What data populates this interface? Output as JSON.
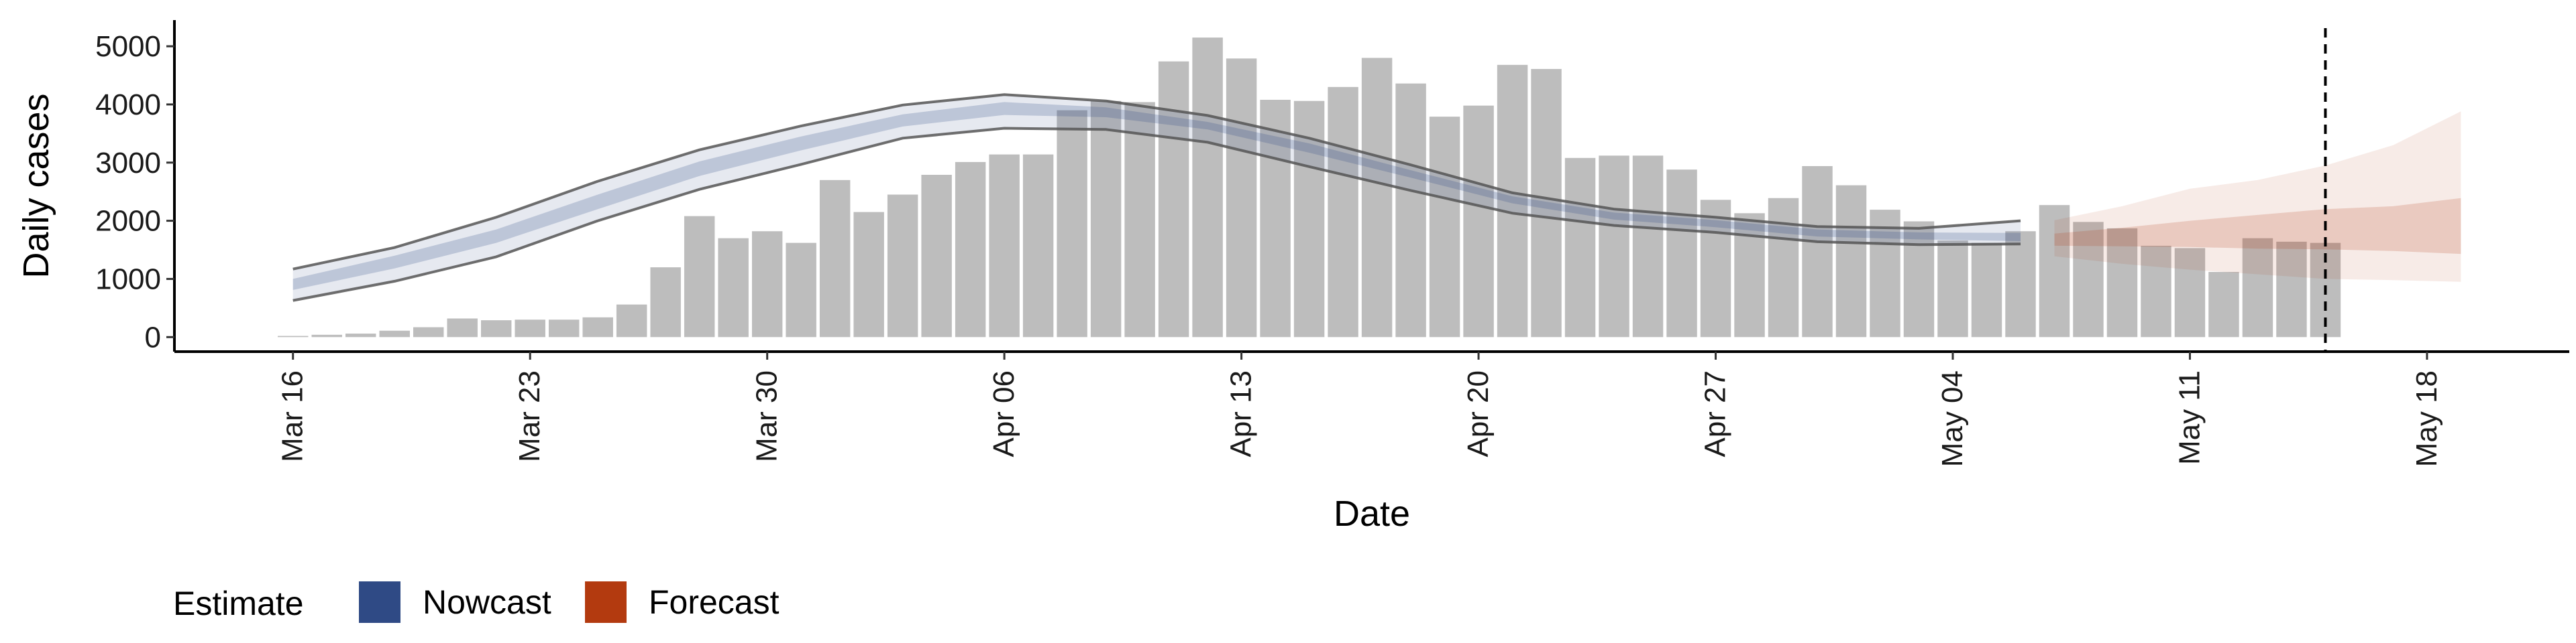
{
  "chart_data": {
    "type": "bar",
    "xlabel": "Date",
    "ylabel": "Daily cases",
    "ylim": [
      -250,
      5450
    ],
    "y_ticks": [
      0,
      1000,
      2000,
      3000,
      4000,
      5000
    ],
    "x_ticks": [
      "Mar 16",
      "Mar 23",
      "Mar 30",
      "Apr 06",
      "Apr 13",
      "Apr 20",
      "Apr 27",
      "May 04",
      "May 11",
      "May 18"
    ],
    "date_start": "Mar 16",
    "date_end": "May 19",
    "bar_color": "#bdbdbd",
    "bars": {
      "name": "Daily cases",
      "x": [
        "Mar 16",
        "Mar 17",
        "Mar 18",
        "Mar 19",
        "Mar 20",
        "Mar 21",
        "Mar 22",
        "Mar 23",
        "Mar 24",
        "Mar 25",
        "Mar 26",
        "Mar 27",
        "Mar 28",
        "Mar 29",
        "Mar 30",
        "Mar 31",
        "Apr 01",
        "Apr 02",
        "Apr 03",
        "Apr 04",
        "Apr 05",
        "Apr 06",
        "Apr 07",
        "Apr 08",
        "Apr 09",
        "Apr 10",
        "Apr 11",
        "Apr 12",
        "Apr 13",
        "Apr 14",
        "Apr 15",
        "Apr 16",
        "Apr 17",
        "Apr 18",
        "Apr 19",
        "Apr 20",
        "Apr 21",
        "Apr 22",
        "Apr 23",
        "Apr 24",
        "Apr 25",
        "Apr 26",
        "Apr 27",
        "Apr 28",
        "Apr 29",
        "Apr 30",
        "May 01",
        "May 02",
        "May 03",
        "May 04",
        "May 05",
        "May 06",
        "May 07",
        "May 08",
        "May 09",
        "May 10",
        "May 11",
        "May 12",
        "May 13",
        "May 14",
        "May 15"
      ],
      "values": [
        20,
        40,
        60,
        110,
        170,
        320,
        290,
        300,
        300,
        340,
        560,
        1200,
        2080,
        1700,
        1820,
        1620,
        2700,
        2150,
        2450,
        2790,
        3010,
        3140,
        3140,
        3900,
        4060,
        4040,
        4740,
        5150,
        4790,
        4080,
        4060,
        4300,
        4800,
        4360,
        3790,
        3980,
        4680,
        4610,
        3080,
        3120,
        3120,
        2880,
        2360,
        2130,
        2390,
        2940,
        2610,
        2190,
        1990,
        1660,
        1620,
        1820,
        2270,
        1980,
        1870,
        1570,
        1530,
        1120,
        1700,
        1640,
        1620
      ]
    },
    "nowcast": {
      "name": "Nowcast",
      "color": "#2f4a85",
      "x": [
        "Mar 16",
        "Mar 19",
        "Mar 22",
        "Mar 25",
        "Mar 28",
        "Mar 31",
        "Apr 03",
        "Apr 06",
        "Apr 09",
        "Apr 12",
        "Apr 15",
        "Apr 18",
        "Apr 21",
        "Apr 24",
        "Apr 27",
        "Apr 30",
        "May 03",
        "May 06"
      ],
      "upper": [
        1170,
        1540,
        2060,
        2680,
        3220,
        3630,
        3990,
        4170,
        4060,
        3810,
        3420,
        2960,
        2480,
        2200,
        2060,
        1900,
        1870,
        2000
      ],
      "upper_inner": [
        1000,
        1400,
        1850,
        2450,
        3020,
        3450,
        3830,
        4040,
        3950,
        3700,
        3330,
        2870,
        2420,
        2140,
        2010,
        1850,
        1800,
        1790
      ],
      "lower_inner": [
        810,
        1180,
        1620,
        2200,
        2770,
        3210,
        3620,
        3820,
        3780,
        3570,
        3170,
        2740,
        2300,
        2020,
        1890,
        1730,
        1680,
        1650
      ],
      "lower": [
        630,
        960,
        1380,
        2000,
        2540,
        2970,
        3420,
        3590,
        3570,
        3350,
        2930,
        2520,
        2130,
        1920,
        1800,
        1640,
        1590,
        1600
      ]
    },
    "forecast": {
      "name": "Forecast",
      "color": "#b33a0f",
      "x": [
        "May 07",
        "May 09",
        "May 11",
        "May 13",
        "May 15",
        "May 17",
        "May 19"
      ],
      "upper": [
        2010,
        2250,
        2550,
        2700,
        2950,
        3300,
        3880
      ],
      "upper_inner": [
        1780,
        1880,
        2000,
        2100,
        2200,
        2250,
        2390
      ],
      "lower_inner": [
        1570,
        1560,
        1550,
        1520,
        1510,
        1480,
        1430
      ],
      "lower": [
        1390,
        1260,
        1160,
        1080,
        1000,
        980,
        950
      ]
    },
    "vline_date": "May 15",
    "legend": {
      "title": "Estimate",
      "position": "bottom-left",
      "items": [
        "Nowcast",
        "Forecast"
      ]
    },
    "grid": false
  }
}
